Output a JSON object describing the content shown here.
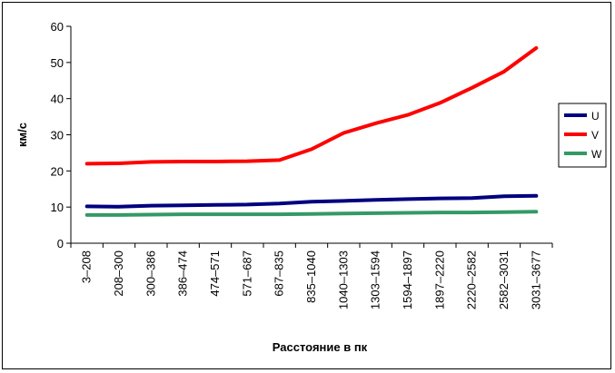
{
  "chart_data": {
    "type": "line",
    "title": "",
    "xlabel": "Расстояние в пк",
    "ylabel": "км/с",
    "ylim": [
      0,
      60
    ],
    "yticks": [
      0,
      10,
      20,
      30,
      40,
      50,
      60
    ],
    "grid": false,
    "legend_position": "right",
    "categories": [
      "3–208",
      "208–300",
      "300–386",
      "386–474",
      "474–571",
      "571–687",
      "687–835",
      "835–1040",
      "1040–1303",
      "1303–1594",
      "1594–1897",
      "1897–2220",
      "2220–2582",
      "2582–3031",
      "3031–3677"
    ],
    "series": [
      {
        "name": "U",
        "color": "#000080",
        "values": [
          10.2,
          10.1,
          10.4,
          10.5,
          10.6,
          10.7,
          11.0,
          11.5,
          11.7,
          12.0,
          12.2,
          12.4,
          12.5,
          13.0,
          13.1
        ]
      },
      {
        "name": "V",
        "color": "#ff0000",
        "values": [
          22.0,
          22.1,
          22.5,
          22.6,
          22.6,
          22.7,
          23.0,
          26.0,
          30.5,
          33.2,
          35.5,
          38.8,
          43.0,
          47.5,
          54.0
        ]
      },
      {
        "name": "W",
        "color": "#339966",
        "values": [
          7.8,
          7.8,
          7.9,
          8.0,
          8.0,
          8.0,
          8.0,
          8.1,
          8.2,
          8.3,
          8.4,
          8.5,
          8.5,
          8.6,
          8.7
        ]
      }
    ]
  }
}
